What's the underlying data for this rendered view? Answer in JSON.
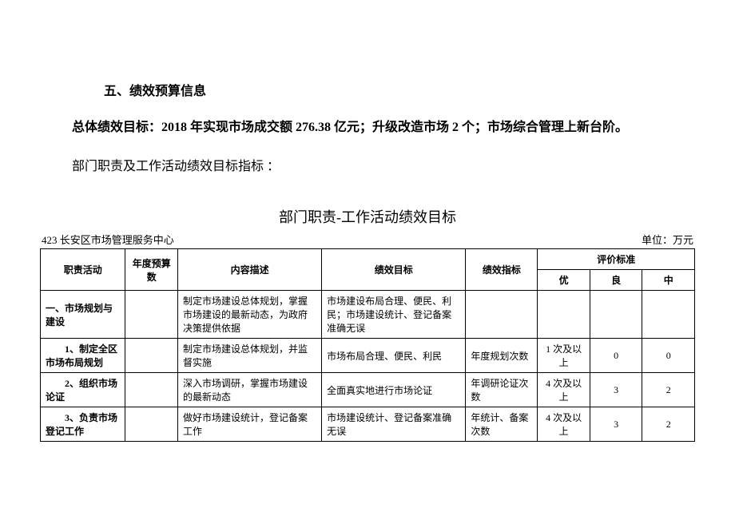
{
  "document": {
    "section_header": "五、绩效预算信息",
    "overall_goal_label": "总体绩效目标：",
    "overall_goal_text": "2018 年实现市场成交额 276.38 亿元；升级改造市场 2 个；市场综合管理上新台阶。",
    "subsection_label": "部门职责及工作活动绩效目标指标 ：",
    "table_title": "部门职责-工作活动绩效目标",
    "table_org": "423 长安区市场管理服务中心",
    "table_unit": "单位：万元"
  },
  "table": {
    "type": "table",
    "background_color": "#ffffff",
    "border_color": "#000000",
    "font_size": 12,
    "header_fontweight": "bold",
    "headers": {
      "col1": "职责活动",
      "col2": "年度预算数",
      "col3": "内容描述",
      "col4": "绩效目标",
      "col5": "绩效指标",
      "col6": "评价标准",
      "col6_sub1": "优",
      "col6_sub2": "良",
      "col6_sub3": "中"
    },
    "rows": [
      {
        "activity": "一、市场规划与建设",
        "budget": "",
        "desc": "制定市场建设总体规划，掌握市场建设的最新动态，为政府决策提供依据",
        "goal": "市场建设布局合理、便民、利民；市场建设统计、登记备案准确无误",
        "indicator": "",
        "std_a": "",
        "std_b": "",
        "std_c": "",
        "bold": true
      },
      {
        "activity": "　　1、制定全区市场布局规划",
        "budget": "",
        "desc": "制定市场建设总体规划，并监督实施",
        "goal": "市场布局合理、便民、利民",
        "indicator": "年度规划次数",
        "std_a": "1 次及以上",
        "std_b": "0",
        "std_c": "0",
        "bold": true
      },
      {
        "activity": "　　2、组织市场论证",
        "budget": "",
        "desc": "深入市场调研，掌握市场建设的最新动态",
        "goal": "全面真实地进行市场论证",
        "indicator": "年调研论证次数",
        "std_a": "4 次及以上",
        "std_b": "3",
        "std_c": "2",
        "bold": true
      },
      {
        "activity": "　　3、负责市场登记工作",
        "budget": "",
        "desc": "做好市场建设统计，登记备案工作",
        "goal": "市场建设统计、登记备案准确无误",
        "indicator": "年统计、备案次数",
        "std_a": "4 次及以上",
        "std_b": "3",
        "std_c": "2",
        "bold": true
      }
    ]
  }
}
